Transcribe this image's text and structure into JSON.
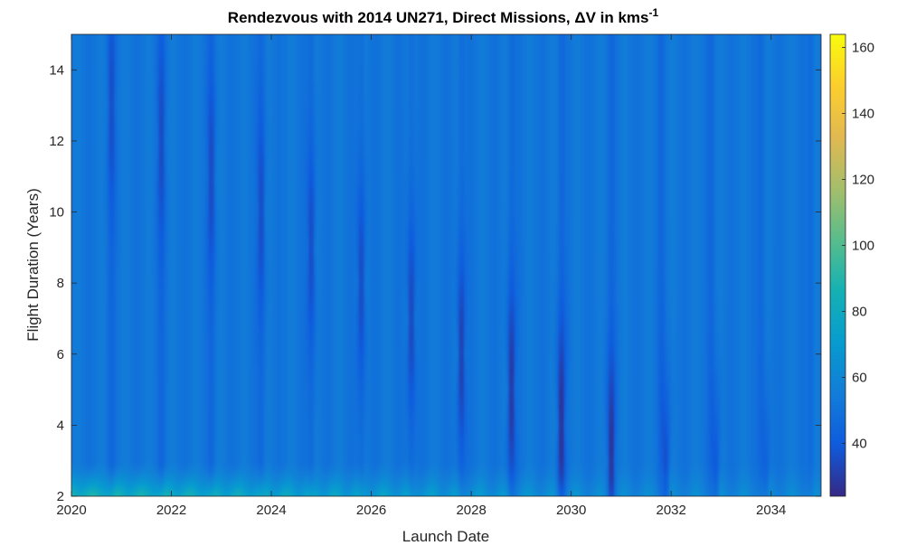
{
  "chart_data": {
    "type": "heatmap",
    "title": "Rendezvous with 2014 UN271, Direct Missions, ΔV in kms",
    "title_superscript": "-1",
    "xlabel": "Launch Date",
    "ylabel": "Flight Duration (Years)",
    "xlim": [
      2020,
      2035
    ],
    "ylim": [
      2,
      15
    ],
    "x_ticks": [
      "2020",
      "2022",
      "2024",
      "2026",
      "2028",
      "2030",
      "2032",
      "2034"
    ],
    "y_ticks": [
      "2",
      "4",
      "6",
      "8",
      "10",
      "12",
      "14"
    ],
    "colorbar": {
      "colormap": "parula",
      "limits": [
        24,
        164
      ],
      "ticks": [
        "40",
        "60",
        "80",
        "100",
        "120",
        "140",
        "160"
      ]
    },
    "background_delta_v": 52,
    "low_delta_v_valleys": [
      {
        "launch": 2020.8,
        "duration": 13.0,
        "min_delta_v": 38
      },
      {
        "launch": 2021.8,
        "duration": 12.0,
        "min_delta_v": 37
      },
      {
        "launch": 2022.8,
        "duration": 11.0,
        "min_delta_v": 36
      },
      {
        "launch": 2023.8,
        "duration": 10.0,
        "min_delta_v": 35
      },
      {
        "launch": 2024.8,
        "duration": 9.0,
        "min_delta_v": 33
      },
      {
        "launch": 2025.8,
        "duration": 8.0,
        "min_delta_v": 31
      },
      {
        "launch": 2026.8,
        "duration": 7.0,
        "min_delta_v": 29
      },
      {
        "launch": 2027.8,
        "duration": 6.0,
        "min_delta_v": 27
      },
      {
        "launch": 2028.8,
        "duration": 5.0,
        "min_delta_v": 25
      },
      {
        "launch": 2029.8,
        "duration": 4.0,
        "min_delta_v": 24
      },
      {
        "launch": 2030.8,
        "duration": 3.0,
        "min_delta_v": 26
      },
      {
        "launch": 2031.9,
        "duration": 2.5,
        "min_delta_v": 30
      },
      {
        "launch": 2032.9,
        "duration": 2.3,
        "min_delta_v": 33
      },
      {
        "launch": 2033.9,
        "duration": 2.2,
        "min_delta_v": 36
      }
    ],
    "short_duration_high_delta_v": {
      "max_delta_v": 95,
      "below_duration": 3
    }
  }
}
